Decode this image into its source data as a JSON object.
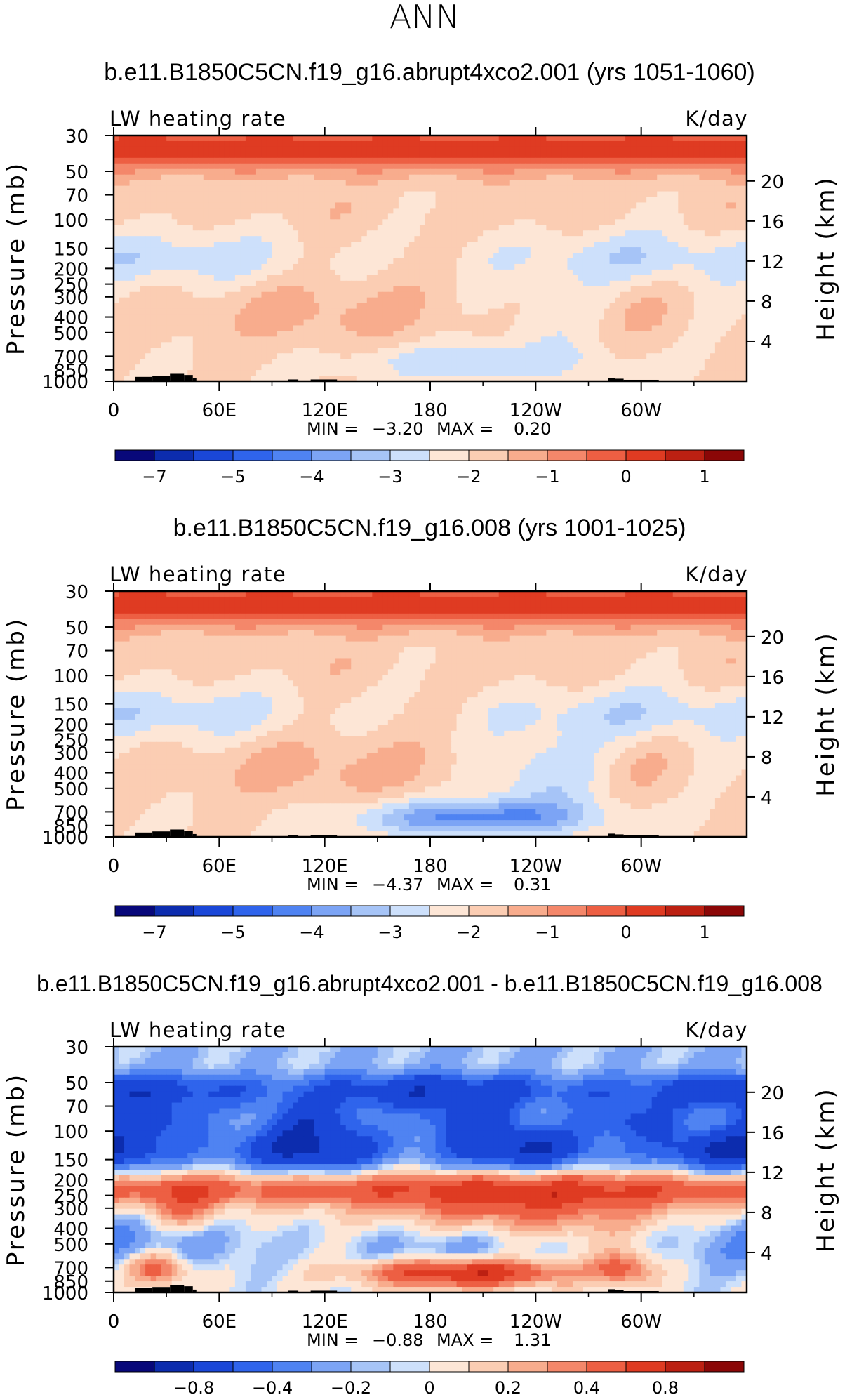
{
  "season": "ANN",
  "units": "K/day",
  "variable": "LW heating rate",
  "axes": {
    "pressure_label": "Pressure (mb)",
    "height_label": "Height (km)",
    "pressure_ticks": [
      "30",
      "50",
      "70",
      "100",
      "150",
      "200",
      "250",
      "300",
      "400",
      "500",
      "700",
      "850",
      "1000"
    ],
    "height_ticks": [
      "20",
      "16",
      "12",
      "8",
      "4"
    ],
    "lon_ticks": [
      "0",
      "60E",
      "120E",
      "180",
      "120W",
      "60W"
    ],
    "min_label": "MIN =",
    "max_label": "MAX ="
  },
  "chart_data": [
    {
      "type": "heatmap",
      "title": "b.e11.B1850C5CN.f19_g16.abrupt4xco2.001 (yrs 1051-1060)",
      "subtitle_left": "LW heating rate",
      "subtitle_right": "K/day",
      "xlabel": "",
      "ylabel": "Pressure (mb)",
      "ylabel_right": "Height (km)",
      "xlim": [
        0,
        360
      ],
      "ylim": [
        1000,
        30
      ],
      "min": "−3.20",
      "max": "0.20",
      "colorbar_levels": [
        "−7",
        "−5",
        "−4",
        "−3",
        "−2",
        "−1",
        "0",
        "1"
      ]
    },
    {
      "type": "heatmap",
      "title": "b.e11.B1850C5CN.f19_g16.008 (yrs 1001-1025)",
      "subtitle_left": "LW heating rate",
      "subtitle_right": "K/day",
      "xlabel": "",
      "ylabel": "Pressure (mb)",
      "ylabel_right": "Height (km)",
      "xlim": [
        0,
        360
      ],
      "ylim": [
        1000,
        30
      ],
      "min": "−4.37",
      "max": "0.31",
      "colorbar_levels": [
        "−7",
        "−5",
        "−4",
        "−3",
        "−2",
        "−1",
        "0",
        "1"
      ]
    },
    {
      "type": "heatmap",
      "title": "b.e11.B1850C5CN.f19_g16.abrupt4xco2.001 - b.e11.B1850C5CN.f19_g16.008",
      "subtitle_left": "LW heating rate",
      "subtitle_right": "K/day",
      "xlabel": "",
      "ylabel": "Pressure (mb)",
      "ylabel_right": "Height (km)",
      "xlim": [
        0,
        360
      ],
      "ylim": [
        1000,
        30
      ],
      "min": "−0.88",
      "max": "1.31",
      "colorbar_levels": [
        "−0.8",
        "−0.4",
        "−0.2",
        "0",
        "0.2",
        "0.4",
        "0.8"
      ]
    }
  ],
  "colors": {
    "palette": [
      "#08087a",
      "#0c2cae",
      "#1a47d8",
      "#2f64ec",
      "#4f83f2",
      "#7ca4f5",
      "#a6c4f7",
      "#cde0fb",
      "#fde6d6",
      "#fbcdb3",
      "#f8ac8d",
      "#f4876a",
      "#ed5f43",
      "#df3b22",
      "#bc2012",
      "#8b0707"
    ],
    "topography": "#000000"
  }
}
